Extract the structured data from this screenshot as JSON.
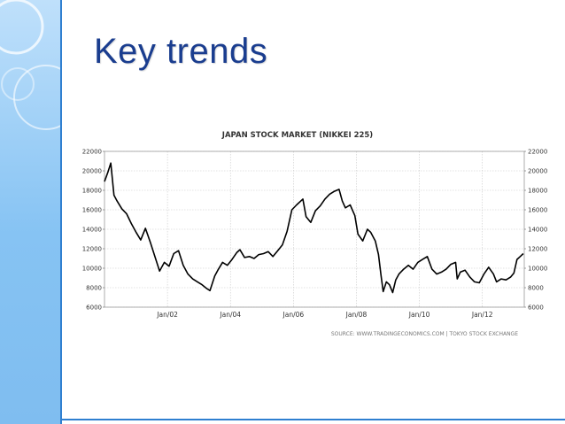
{
  "slide": {
    "title": "Key trends"
  },
  "chart_data": {
    "type": "line",
    "title": "JAPAN STOCK MARKET (NIKKEI 225)",
    "source": "SOURCE: WWW.TRADINGECONOMICS.COM  |  TOKYO STOCK EXCHANGE",
    "xlabel": "",
    "ylabel": "",
    "ylim": [
      6000,
      22000
    ],
    "yticks": [
      6000,
      8000,
      10000,
      12000,
      14000,
      16000,
      18000,
      20000,
      22000
    ],
    "xlim": [
      2000.0,
      2013.33
    ],
    "xticks": [
      {
        "label": "Jan/02",
        "x": 2002
      },
      {
        "label": "Jan/04",
        "x": 2004
      },
      {
        "label": "Jan/06",
        "x": 2006
      },
      {
        "label": "Jan/08",
        "x": 2008
      },
      {
        "label": "Jan/10",
        "x": 2010
      },
      {
        "label": "Jan/12",
        "x": 2012
      }
    ],
    "grid": true,
    "legend": "none",
    "series": [
      {
        "color": "#000000",
        "points": [
          [
            2000.0,
            18900
          ],
          [
            2000.1,
            19800
          ],
          [
            2000.2,
            20800
          ],
          [
            2000.3,
            17500
          ],
          [
            2000.4,
            16900
          ],
          [
            2000.55,
            16100
          ],
          [
            2000.7,
            15600
          ],
          [
            2000.85,
            14600
          ],
          [
            2001.0,
            13700
          ],
          [
            2001.15,
            12900
          ],
          [
            2001.3,
            14100
          ],
          [
            2001.45,
            12700
          ],
          [
            2001.6,
            11200
          ],
          [
            2001.75,
            9700
          ],
          [
            2001.9,
            10600
          ],
          [
            2002.05,
            10200
          ],
          [
            2002.2,
            11500
          ],
          [
            2002.35,
            11800
          ],
          [
            2002.5,
            10300
          ],
          [
            2002.65,
            9400
          ],
          [
            2002.8,
            8900
          ],
          [
            2002.95,
            8600
          ],
          [
            2003.1,
            8300
          ],
          [
            2003.25,
            7900
          ],
          [
            2003.35,
            7700
          ],
          [
            2003.5,
            9200
          ],
          [
            2003.6,
            9800
          ],
          [
            2003.75,
            10600
          ],
          [
            2003.9,
            10300
          ],
          [
            2004.05,
            10900
          ],
          [
            2004.2,
            11600
          ],
          [
            2004.3,
            11900
          ],
          [
            2004.45,
            11100
          ],
          [
            2004.6,
            11200
          ],
          [
            2004.75,
            11000
          ],
          [
            2004.9,
            11400
          ],
          [
            2005.05,
            11500
          ],
          [
            2005.2,
            11700
          ],
          [
            2005.35,
            11200
          ],
          [
            2005.5,
            11800
          ],
          [
            2005.65,
            12400
          ],
          [
            2005.8,
            13800
          ],
          [
            2005.95,
            16000
          ],
          [
            2006.1,
            16500
          ],
          [
            2006.3,
            17100
          ],
          [
            2006.4,
            15300
          ],
          [
            2006.55,
            14700
          ],
          [
            2006.7,
            15900
          ],
          [
            2006.85,
            16400
          ],
          [
            2007.0,
            17100
          ],
          [
            2007.15,
            17600
          ],
          [
            2007.3,
            17900
          ],
          [
            2007.45,
            18100
          ],
          [
            2007.55,
            16900
          ],
          [
            2007.65,
            16200
          ],
          [
            2007.8,
            16500
          ],
          [
            2007.95,
            15400
          ],
          [
            2008.05,
            13500
          ],
          [
            2008.2,
            12800
          ],
          [
            2008.35,
            14000
          ],
          [
            2008.45,
            13700
          ],
          [
            2008.6,
            12800
          ],
          [
            2008.7,
            11400
          ],
          [
            2008.78,
            9300
          ],
          [
            2008.85,
            7600
          ],
          [
            2008.95,
            8600
          ],
          [
            2009.05,
            8300
          ],
          [
            2009.15,
            7500
          ],
          [
            2009.25,
            8800
          ],
          [
            2009.35,
            9400
          ],
          [
            2009.5,
            9900
          ],
          [
            2009.65,
            10300
          ],
          [
            2009.8,
            9900
          ],
          [
            2009.95,
            10600
          ],
          [
            2010.1,
            10900
          ],
          [
            2010.25,
            11200
          ],
          [
            2010.4,
            9900
          ],
          [
            2010.55,
            9400
          ],
          [
            2010.7,
            9600
          ],
          [
            2010.85,
            9900
          ],
          [
            2011.0,
            10400
          ],
          [
            2011.15,
            10600
          ],
          [
            2011.2,
            8900
          ],
          [
            2011.3,
            9600
          ],
          [
            2011.45,
            9800
          ],
          [
            2011.6,
            9100
          ],
          [
            2011.75,
            8600
          ],
          [
            2011.9,
            8500
          ],
          [
            2012.05,
            9400
          ],
          [
            2012.2,
            10100
          ],
          [
            2012.35,
            9400
          ],
          [
            2012.45,
            8600
          ],
          [
            2012.6,
            8900
          ],
          [
            2012.75,
            8800
          ],
          [
            2012.9,
            9100
          ],
          [
            2013.0,
            9500
          ],
          [
            2013.1,
            10900
          ],
          [
            2013.2,
            11200
          ],
          [
            2013.3,
            11500
          ]
        ]
      }
    ]
  }
}
